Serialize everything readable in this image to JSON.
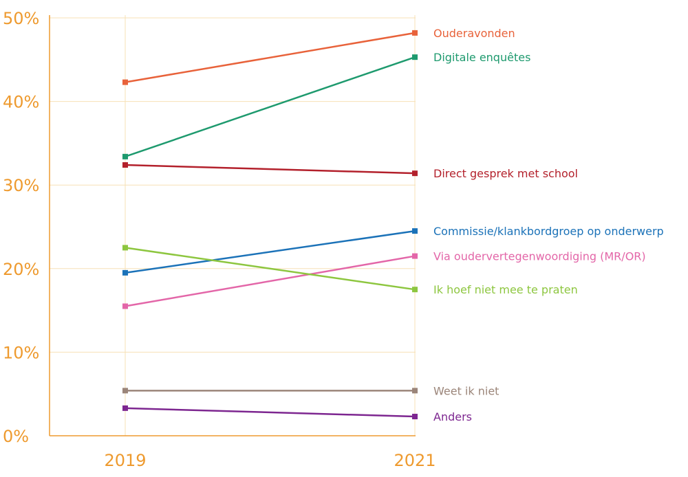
{
  "chart_data": {
    "type": "line",
    "title": "",
    "xlabel": "",
    "ylabel": "",
    "x": [
      "2019",
      "2021"
    ],
    "ylim": [
      0,
      50
    ],
    "yticks": [
      "0%",
      "10%",
      "20%",
      "30%",
      "40%",
      "50%"
    ],
    "grid": true,
    "legend": "labels at right end of lines",
    "colors": {
      "axis": "#EE9A2E",
      "grid": "#F7E0B5"
    },
    "series": [
      {
        "name": "Ouderavonden",
        "values": [
          42.3,
          48.2
        ],
        "color": "#E8623A"
      },
      {
        "name": "Digitale enquêtes",
        "values": [
          33.4,
          45.3
        ],
        "color": "#1E9A6E"
      },
      {
        "name": "Direct gesprek met school",
        "values": [
          32.4,
          31.4
        ],
        "color": "#B3202B"
      },
      {
        "name": "Commissie/klankbordgroep op onderwerp",
        "values": [
          19.5,
          24.5
        ],
        "color": "#1B72B8"
      },
      {
        "name": "Via oudervertegenwoordiging (MR/OR)",
        "values": [
          15.5,
          21.5
        ],
        "color": "#E366A8"
      },
      {
        "name": "Ik hoef niet mee te praten",
        "values": [
          22.5,
          17.5
        ],
        "color": "#8DC63F"
      },
      {
        "name": "Weet ik niet",
        "values": [
          5.4,
          5.4
        ],
        "color": "#9B8579"
      },
      {
        "name": "Anders",
        "values": [
          3.3,
          2.3
        ],
        "color": "#7D2690"
      }
    ]
  }
}
